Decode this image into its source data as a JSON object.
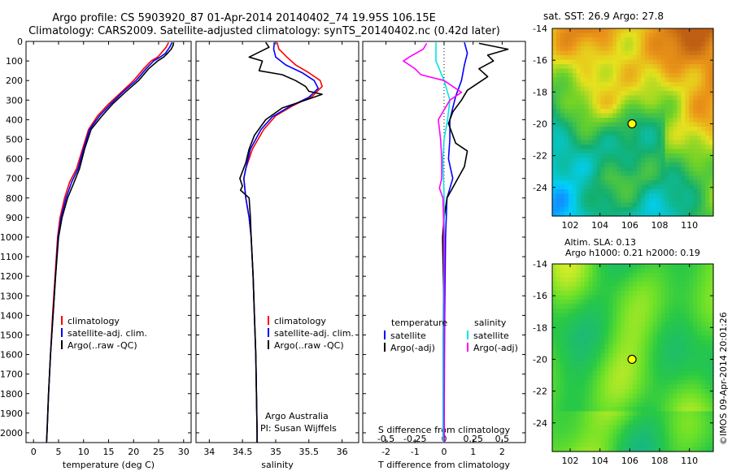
{
  "colors": {
    "climatology": "#ff0000",
    "satellite": "#0000ff",
    "argo": "#000000",
    "sal_satellite": "#00e5e5",
    "sal_argo": "#ff00ff",
    "marker": "#ffff00"
  },
  "header": {
    "line1": "Argo profile: CS 5903920_87 01-Apr-2014 20140402_74 19.95S 106.15E",
    "line2": "Climatology: CARS2009. Satellite-adjusted climatology: synTS_20140402.nc (0.42d later)"
  },
  "chart_data": [
    {
      "type": "line",
      "id": "temperature",
      "xlabel": "temperature (deg C)",
      "xlim": [
        -1.5,
        31.5
      ],
      "xticks": [
        0,
        5,
        10,
        15,
        20,
        25,
        30
      ],
      "ylim": [
        0,
        2050
      ],
      "yticks": [
        0,
        100,
        200,
        300,
        400,
        500,
        600,
        700,
        800,
        900,
        1000,
        1100,
        1200,
        1300,
        1400,
        1500,
        1600,
        1700,
        1800,
        1900,
        2000
      ],
      "legend": [
        "climatology",
        "satellite-adj. clim.",
        "Argo(..raw -QC)"
      ],
      "series": [
        {
          "name": "climatology",
          "color": "#ff0000",
          "points": [
            [
              27.0,
              5
            ],
            [
              26.5,
              30
            ],
            [
              25.5,
              60
            ],
            [
              24.8,
              80
            ],
            [
              23.5,
              100
            ],
            [
              22.0,
              140
            ],
            [
              20.0,
              200
            ],
            [
              17.5,
              260
            ],
            [
              15.0,
              320
            ],
            [
              12.8,
              380
            ],
            [
              11.0,
              450
            ],
            [
              9.8,
              550
            ],
            [
              8.6,
              650
            ],
            [
              7.2,
              720
            ],
            [
              6.2,
              800
            ],
            [
              5.3,
              900
            ],
            [
              4.8,
              1000
            ],
            [
              4.3,
              1200
            ],
            [
              3.8,
              1400
            ],
            [
              3.4,
              1600
            ],
            [
              3.0,
              1800
            ],
            [
              2.7,
              2000
            ],
            [
              2.6,
              2050
            ]
          ]
        },
        {
          "name": "satellite-adj. clim.",
          "color": "#0000ff",
          "points": [
            [
              27.7,
              5
            ],
            [
              27.2,
              30
            ],
            [
              26.4,
              60
            ],
            [
              25.3,
              80
            ],
            [
              24.0,
              100
            ],
            [
              22.5,
              140
            ],
            [
              20.5,
              200
            ],
            [
              17.8,
              260
            ],
            [
              15.4,
              320
            ],
            [
              13.2,
              380
            ],
            [
              11.2,
              450
            ],
            [
              10.0,
              550
            ],
            [
              8.9,
              650
            ],
            [
              7.6,
              720
            ],
            [
              6.5,
              800
            ],
            [
              5.5,
              900
            ],
            [
              4.9,
              1000
            ],
            [
              4.4,
              1200
            ],
            [
              3.9,
              1400
            ],
            [
              3.4,
              1600
            ],
            [
              3.0,
              1800
            ],
            [
              2.7,
              2000
            ],
            [
              2.6,
              2050
            ]
          ]
        },
        {
          "name": "Argo(..raw -QC)",
          "color": "#000000",
          "points": [
            [
              28.0,
              5
            ],
            [
              27.9,
              20
            ],
            [
              27.5,
              40
            ],
            [
              26.8,
              60
            ],
            [
              26.0,
              80
            ],
            [
              24.8,
              100
            ],
            [
              23.0,
              140
            ],
            [
              21.0,
              200
            ],
            [
              18.3,
              260
            ],
            [
              15.8,
              320
            ],
            [
              13.7,
              380
            ],
            [
              11.5,
              450
            ],
            [
              10.2,
              550
            ],
            [
              9.2,
              650
            ],
            [
              8.1,
              720
            ],
            [
              6.8,
              800
            ],
            [
              5.7,
              900
            ],
            [
              5.0,
              1000
            ],
            [
              4.4,
              1200
            ],
            [
              3.9,
              1400
            ],
            [
              3.4,
              1600
            ],
            [
              3.0,
              1800
            ],
            [
              2.7,
              2000
            ],
            [
              2.6,
              2050
            ]
          ]
        }
      ]
    },
    {
      "type": "line",
      "id": "salinity",
      "xlabel": "salinity",
      "xlim": [
        33.8,
        36.25
      ],
      "xticks": [
        34,
        34.5,
        35,
        35.5,
        36
      ],
      "xticklabels": [
        "34",
        "34.5",
        "35",
        "35.5",
        "36"
      ],
      "ylim": [
        0,
        2050
      ],
      "legend": [
        "climatology",
        "satellite-adj. clim.",
        "Argo(..raw -QC)"
      ],
      "annotation": [
        "Argo Australia",
        "PI: Susan Wijffels"
      ],
      "series": [
        {
          "name": "climatology",
          "color": "#ff0000",
          "points": [
            [
              35.02,
              5
            ],
            [
              35.05,
              40
            ],
            [
              35.17,
              80
            ],
            [
              35.3,
              120
            ],
            [
              35.5,
              160
            ],
            [
              35.67,
              200
            ],
            [
              35.7,
              230
            ],
            [
              35.55,
              280
            ],
            [
              35.25,
              330
            ],
            [
              35.0,
              380
            ],
            [
              34.82,
              450
            ],
            [
              34.65,
              550
            ],
            [
              34.55,
              650
            ],
            [
              34.52,
              700
            ],
            [
              34.55,
              800
            ],
            [
              34.6,
              900
            ],
            [
              34.63,
              1000
            ],
            [
              34.66,
              1200
            ],
            [
              34.68,
              1400
            ],
            [
              34.7,
              1600
            ],
            [
              34.71,
              1800
            ],
            [
              34.72,
              2000
            ],
            [
              34.72,
              2050
            ]
          ]
        },
        {
          "name": "satellite-adj. clim.",
          "color": "#0000ff",
          "points": [
            [
              34.98,
              5
            ],
            [
              34.97,
              40
            ],
            [
              35.0,
              80
            ],
            [
              35.15,
              120
            ],
            [
              35.4,
              160
            ],
            [
              35.58,
              200
            ],
            [
              35.64,
              240
            ],
            [
              35.5,
              285
            ],
            [
              35.2,
              335
            ],
            [
              34.95,
              385
            ],
            [
              34.78,
              450
            ],
            [
              34.62,
              550
            ],
            [
              34.55,
              650
            ],
            [
              34.52,
              700
            ],
            [
              34.55,
              800
            ],
            [
              34.6,
              900
            ],
            [
              34.63,
              1000
            ],
            [
              34.66,
              1200
            ],
            [
              34.68,
              1400
            ],
            [
              34.7,
              1600
            ],
            [
              34.71,
              1800
            ],
            [
              34.72,
              2000
            ],
            [
              34.72,
              2050
            ]
          ]
        },
        {
          "name": "Argo(..raw -QC)",
          "color": "#000000",
          "points": [
            [
              34.85,
              5
            ],
            [
              34.9,
              30
            ],
            [
              34.6,
              80
            ],
            [
              34.8,
              100
            ],
            [
              34.75,
              150
            ],
            [
              35.1,
              170
            ],
            [
              35.3,
              200
            ],
            [
              35.45,
              230
            ],
            [
              35.5,
              255
            ],
            [
              35.7,
              270
            ],
            [
              35.45,
              300
            ],
            [
              35.1,
              340
            ],
            [
              34.85,
              400
            ],
            [
              34.68,
              480
            ],
            [
              34.6,
              550
            ],
            [
              34.55,
              620
            ],
            [
              34.46,
              700
            ],
            [
              34.5,
              740
            ],
            [
              34.47,
              760
            ],
            [
              34.6,
              800
            ],
            [
              34.62,
              900
            ],
            [
              34.63,
              1000
            ],
            [
              34.66,
              1200
            ],
            [
              34.68,
              1400
            ],
            [
              34.7,
              1600
            ],
            [
              34.71,
              1800
            ],
            [
              34.72,
              2000
            ],
            [
              34.72,
              2050
            ]
          ]
        }
      ]
    },
    {
      "type": "line",
      "id": "difference",
      "xlabel_top": "S difference from climatology",
      "xlabel": "T difference from climatology",
      "xlim": [
        -2.8,
        2.8
      ],
      "xticks": [
        -2,
        -1,
        0,
        1,
        2
      ],
      "top_ticks": [
        -0.5,
        -0.25,
        0,
        0.25,
        0.5
      ],
      "top_ticklabels": [
        "-0.5",
        "-0.25",
        "0",
        "0.25",
        "0.5"
      ],
      "salinity_scale": 4,
      "ylim": [
        0,
        2050
      ],
      "legend_left_title": "temperature",
      "legend_left": [
        "satellite",
        "Argo(-adj)"
      ],
      "legend_right_title": "salinity",
      "legend_right": [
        "satellite",
        "Argo(-adj)"
      ],
      "series": [
        {
          "name": "T satellite",
          "color": "#0000ff",
          "points": [
            [
              0.7,
              5
            ],
            [
              0.8,
              60
            ],
            [
              0.7,
              120
            ],
            [
              0.6,
              200
            ],
            [
              0.4,
              280
            ],
            [
              0.3,
              340
            ],
            [
              0.2,
              400
            ],
            [
              0.2,
              500
            ],
            [
              0.15,
              600
            ],
            [
              0.3,
              700
            ],
            [
              0.1,
              800
            ],
            [
              0.05,
              1000
            ],
            [
              0.02,
              1400
            ],
            [
              0.0,
              2050
            ]
          ]
        },
        {
          "name": "T Argo(-adj)",
          "color": "#000000",
          "points": [
            [
              1.2,
              10
            ],
            [
              2.2,
              40
            ],
            [
              1.5,
              70
            ],
            [
              1.7,
              100
            ],
            [
              1.2,
              140
            ],
            [
              1.5,
              180
            ],
            [
              0.8,
              250
            ],
            [
              0.6,
              300
            ],
            [
              0.3,
              360
            ],
            [
              0.15,
              420
            ],
            [
              0.4,
              520
            ],
            [
              0.8,
              560
            ],
            [
              0.7,
              640
            ],
            [
              0.4,
              720
            ],
            [
              0.1,
              800
            ],
            [
              0.0,
              900
            ],
            [
              -0.05,
              1000
            ],
            [
              -0.02,
              1300
            ],
            [
              0.0,
              1600
            ],
            [
              0.0,
              2050
            ]
          ]
        },
        {
          "name": "S satellite",
          "color": "#00e5e5",
          "scale": "salinity",
          "points": [
            [
              -0.07,
              5
            ],
            [
              -0.07,
              100
            ],
            [
              0.0,
              200
            ],
            [
              0.05,
              300
            ],
            [
              0.03,
              400
            ],
            [
              0.0,
              500
            ],
            [
              -0.01,
              600
            ],
            [
              0.0,
              800
            ],
            [
              0.0,
              1000
            ],
            [
              -0.01,
              1500
            ],
            [
              -0.01,
              2050
            ]
          ]
        },
        {
          "name": "S Argo(-adj)",
          "color": "#ff00ff",
          "scale": "salinity",
          "points": [
            [
              -0.15,
              10
            ],
            [
              -0.18,
              40
            ],
            [
              -0.3,
              80
            ],
            [
              -0.35,
              100
            ],
            [
              -0.25,
              140
            ],
            [
              -0.2,
              170
            ],
            [
              0.0,
              200
            ],
            [
              0.15,
              260
            ],
            [
              0.05,
              300
            ],
            [
              0.0,
              350
            ],
            [
              -0.05,
              400
            ],
            [
              -0.03,
              500
            ],
            [
              -0.02,
              600
            ],
            [
              -0.02,
              700
            ],
            [
              -0.04,
              750
            ],
            [
              -0.01,
              800
            ],
            [
              0.0,
              1000
            ],
            [
              0.0,
              1500
            ],
            [
              0.0,
              2050
            ]
          ]
        }
      ]
    },
    {
      "type": "heatmap",
      "id": "sst_map",
      "title": "sat. SST: 26.9 Argo: 27.8",
      "xlim": [
        100.8,
        111.6
      ],
      "ylim": [
        -25.8,
        -14
      ],
      "xticks": [
        102,
        104,
        106,
        108,
        110
      ],
      "yticks": [
        -14,
        -16,
        -18,
        -20,
        -22,
        -24
      ],
      "marker": {
        "lon": 106.15,
        "lat": -20.0
      }
    },
    {
      "type": "heatmap",
      "id": "sla_map",
      "title": "Altim. SLA: 0.13",
      "subtitle": "Argo h1000: 0.21 h2000: 0.19",
      "xlim": [
        100.8,
        111.6
      ],
      "ylim": [
        -25.8,
        -14
      ],
      "xticks": [
        102,
        104,
        106,
        108,
        110
      ],
      "yticks": [
        -14,
        -16,
        -18,
        -20,
        -22,
        -24
      ],
      "marker": {
        "lon": 106.15,
        "lat": -20.0
      }
    }
  ],
  "credit": "©IMOS 09-Apr-2014 20:01:26"
}
